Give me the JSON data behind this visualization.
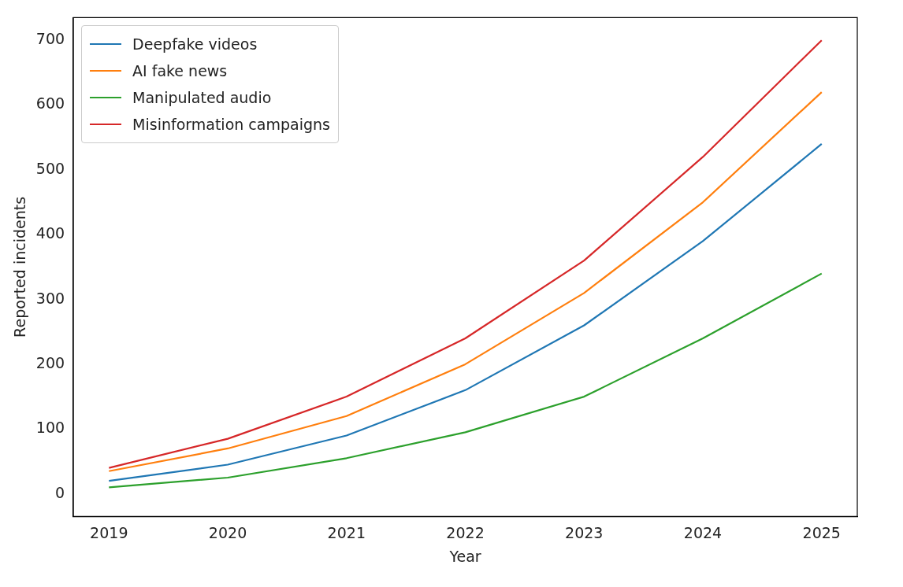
{
  "chart_data": {
    "type": "line",
    "xlabel": "Year",
    "ylabel": "Reported incidents",
    "x": [
      2019,
      2020,
      2021,
      2022,
      2023,
      2024,
      2025
    ],
    "xlim": [
      2018.7,
      2025.3
    ],
    "xticks": [
      2019,
      2020,
      2021,
      2022,
      2023,
      2024,
      2025
    ],
    "ylim": [
      -35,
      735
    ],
    "yticks": [
      0,
      100,
      200,
      300,
      400,
      500,
      600,
      700
    ],
    "grid": false,
    "legend": "top left",
    "marker": "none",
    "line_style": "solid",
    "series": [
      {
        "name": "Deepfake videos",
        "color": "#1f77b4",
        "values": [
          20,
          45,
          90,
          160,
          260,
          390,
          540
        ]
      },
      {
        "name": "AI fake news",
        "color": "#ff7f0e",
        "values": [
          35,
          70,
          120,
          200,
          310,
          450,
          620
        ]
      },
      {
        "name": "Manipulated audio",
        "color": "#2ca02c",
        "values": [
          10,
          25,
          55,
          95,
          150,
          240,
          340
        ]
      },
      {
        "name": "Misinformation campaigns",
        "color": "#d62728",
        "values": [
          40,
          85,
          150,
          240,
          360,
          520,
          700
        ]
      }
    ]
  }
}
